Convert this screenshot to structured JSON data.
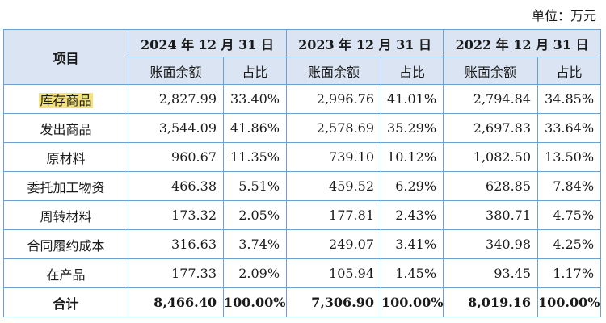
{
  "unit_label": "单位：万元",
  "header": {
    "item": "项目",
    "periods": [
      "2024 年 12 月 31 日",
      "2023 年 12 月 31 日",
      "2022 年 12 月 31 日"
    ],
    "sub": {
      "amount": "账面余额",
      "ratio": "占比"
    }
  },
  "rows": [
    {
      "name": "库存商品",
      "values": [
        "2,827.99",
        "33.40%",
        "2,996.76",
        "41.01%",
        "2,794.84",
        "34.85%"
      ]
    },
    {
      "name": "发出商品",
      "values": [
        "3,544.09",
        "41.86%",
        "2,578.69",
        "35.29%",
        "2,697.83",
        "33.64%"
      ]
    },
    {
      "name": "原材料",
      "values": [
        "960.67",
        "11.35%",
        "739.10",
        "10.12%",
        "1,082.50",
        "13.50%"
      ]
    },
    {
      "name": "委托加工物资",
      "values": [
        "466.38",
        "5.51%",
        "459.52",
        "6.29%",
        "628.85",
        "7.84%"
      ]
    },
    {
      "name": "周转材料",
      "values": [
        "173.32",
        "2.05%",
        "177.81",
        "2.43%",
        "380.71",
        "4.75%"
      ]
    },
    {
      "name": "合同履约成本",
      "values": [
        "316.63",
        "3.74%",
        "249.07",
        "3.41%",
        "340.98",
        "4.25%"
      ]
    },
    {
      "name": "在产品",
      "values": [
        "177.33",
        "2.09%",
        "105.94",
        "1.45%",
        "93.45",
        "1.17%"
      ]
    },
    {
      "name": "合计",
      "values": [
        "8,466.40",
        "100.00%",
        "7,306.90",
        "100.00%",
        "8,019.16",
        "100.00%"
      ]
    }
  ],
  "colors": {
    "header_bg": "#dbe4f2",
    "border": "#6d9fcf",
    "highlight": "#f3e27a"
  }
}
